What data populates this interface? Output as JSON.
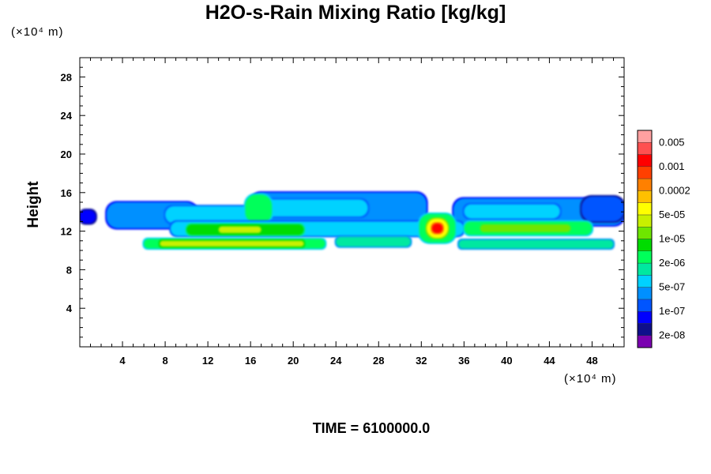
{
  "chart_data": {
    "type": "contour",
    "title": "H2O-s-Rain Mixing Ratio [kg/kg]",
    "xlabel": "",
    "ylabel": "Height",
    "x_unit": "(×10⁴ m)",
    "y_unit": "(×10⁴ m)",
    "xlim": [
      0,
      51
    ],
    "ylim": [
      0,
      30
    ],
    "x_ticks": [
      4,
      8,
      12,
      16,
      20,
      24,
      28,
      32,
      36,
      40,
      44,
      48
    ],
    "y_ticks": [
      4,
      8,
      12,
      16,
      20,
      24,
      28
    ],
    "colorbar": {
      "colors": [
        "#7a00b0",
        "#0f0f8c",
        "#0000ff",
        "#0055ff",
        "#0090ff",
        "#00d2ff",
        "#00e8a0",
        "#00ff5a",
        "#00dc00",
        "#6ee600",
        "#c8f000",
        "#ffff00",
        "#ffc000",
        "#ff8000",
        "#ff4000",
        "#ff0000",
        "#ff5050",
        "#ffa0a0"
      ],
      "labels": [
        "2e-08",
        "1e-07",
        "5e-07",
        "2e-06",
        "1e-05",
        "5e-05",
        "0.0002",
        "0.001",
        "0.005"
      ]
    },
    "blobs": [
      {
        "x0": 0,
        "x1": 1.5,
        "y0": 12.8,
        "y1": 14.2,
        "level": 2
      },
      {
        "x0": 2.5,
        "x1": 11,
        "y0": 12.3,
        "y1": 15.0,
        "level": 4
      },
      {
        "x0": 8,
        "x1": 17,
        "y0": 12.8,
        "y1": 14.6,
        "level": 5
      },
      {
        "x0": 16,
        "x1": 32.5,
        "y0": 13.0,
        "y1": 16.0,
        "level": 4
      },
      {
        "x0": 17,
        "x1": 27,
        "y0": 13.5,
        "y1": 15.3,
        "level": 5
      },
      {
        "x0": 15.5,
        "x1": 18,
        "y0": 12.8,
        "y1": 15.8,
        "level": 7
      },
      {
        "x0": 35,
        "x1": 51,
        "y0": 12.6,
        "y1": 15.4,
        "level": 4
      },
      {
        "x0": 36,
        "x1": 45,
        "y0": 13.3,
        "y1": 14.8,
        "level": 5
      },
      {
        "x0": 47,
        "x1": 51,
        "y0": 13.0,
        "y1": 15.6,
        "level": 3
      },
      {
        "x0": 8.5,
        "x1": 36,
        "y0": 11.5,
        "y1": 13.0,
        "level": 5
      },
      {
        "x0": 10,
        "x1": 21,
        "y0": 11.6,
        "y1": 12.7,
        "level": 8
      },
      {
        "x0": 13,
        "x1": 17,
        "y0": 11.8,
        "y1": 12.5,
        "level": 10
      },
      {
        "x0": 6,
        "x1": 23,
        "y0": 10.2,
        "y1": 11.2,
        "level": 7
      },
      {
        "x0": 7.5,
        "x1": 21,
        "y0": 10.4,
        "y1": 11.0,
        "level": 10
      },
      {
        "x0": 24,
        "x1": 31,
        "y0": 10.4,
        "y1": 11.4,
        "level": 6
      },
      {
        "x0": 35.5,
        "x1": 50,
        "y0": 10.2,
        "y1": 11.1,
        "level": 6
      },
      {
        "x0": 36,
        "x1": 48,
        "y0": 11.6,
        "y1": 13.0,
        "level": 7
      },
      {
        "x0": 37.5,
        "x1": 46,
        "y0": 11.9,
        "y1": 12.7,
        "level": 9
      },
      {
        "x0": 31.8,
        "x1": 35.2,
        "y0": 10.8,
        "y1": 13.8,
        "level": 7
      },
      {
        "x0": 32.5,
        "x1": 34.5,
        "y0": 11.3,
        "y1": 13.3,
        "level": 11
      },
      {
        "x0": 33.0,
        "x1": 34.0,
        "y0": 11.8,
        "y1": 12.8,
        "level": 15
      }
    ]
  },
  "time_label": "TIME = 6100000.0"
}
